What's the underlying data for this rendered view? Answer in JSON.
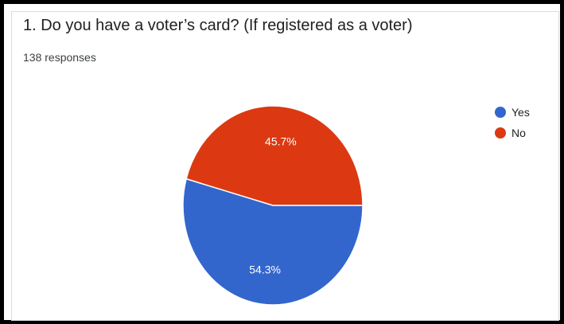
{
  "question": {
    "title": "1. Do you have a voter’s card? (If registered as a voter)",
    "responses": "138 responses"
  },
  "chart_data": {
    "type": "pie",
    "title": "1. Do you have a voter’s card? (If registered as a voter)",
    "categories": [
      "Yes",
      "No"
    ],
    "values": [
      54.3,
      45.7
    ],
    "labels": [
      "54.3%",
      "45.7%"
    ],
    "colors": [
      "#3366cc",
      "#dc3912"
    ],
    "legend": "right"
  }
}
